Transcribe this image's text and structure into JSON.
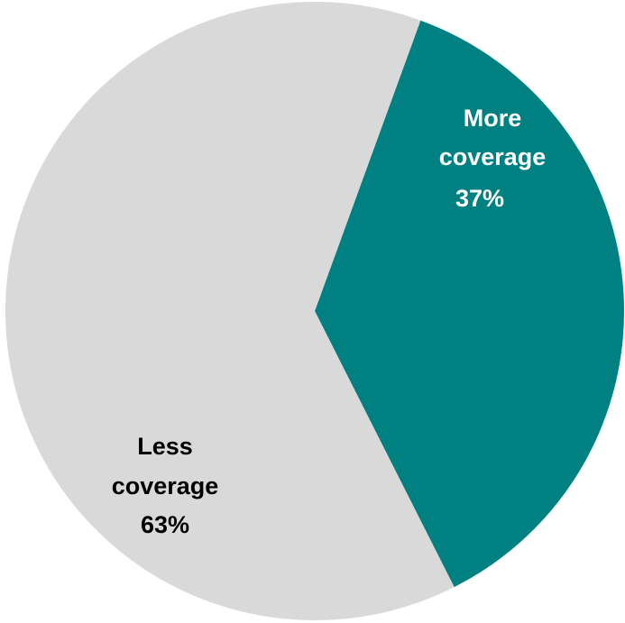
{
  "chart_data": {
    "type": "pie",
    "start_angle_deg": 20,
    "slices": [
      {
        "name": "More coverage",
        "label_lines": [
          "More",
          "coverage"
        ],
        "value": 37,
        "value_label": "37%",
        "color": "#008080",
        "label_color": "#ffffff"
      },
      {
        "name": "Less coverage",
        "label_lines": [
          "Less",
          "coverage"
        ],
        "value": 63,
        "value_label": "63%",
        "color": "#d9d9d9",
        "label_color": "#000000"
      }
    ]
  }
}
